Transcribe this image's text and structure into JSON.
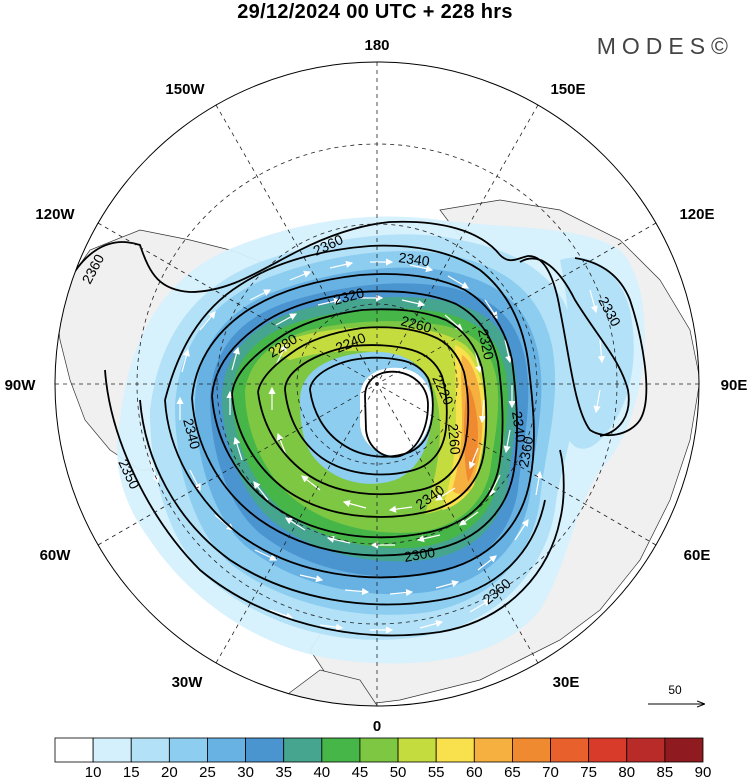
{
  "header": {
    "title": "29/12/2024  00 UTC  + 228 hrs",
    "brand": "MODES©"
  },
  "map": {
    "projection": "north-polar-stereographic",
    "longitude_labels": {
      "top": "180",
      "bottom": "0",
      "left": "90W",
      "right": "90E",
      "upper_left": "150W",
      "upper_right": "150E",
      "mid_upper_left": "120W",
      "mid_upper_right": "120E",
      "mid_lower_left": "60W",
      "mid_lower_right": "60E",
      "lower_left": "30W",
      "lower_right": "30E"
    },
    "contour_labels": [
      "2360",
      "2340",
      "2320",
      "2280",
      "2240",
      "2260",
      "2220",
      "2320",
      "2340",
      "2330",
      "2260",
      "2340",
      "2300",
      "2360",
      "2350",
      "2340",
      "2360",
      "2360"
    ],
    "land_color": "#f2f2f2",
    "grid_style": "dashed"
  },
  "colorbar": {
    "ticks": [
      "10",
      "15",
      "20",
      "25",
      "30",
      "35",
      "40",
      "45",
      "50",
      "55",
      "60",
      "65",
      "70",
      "75",
      "80",
      "85",
      "90"
    ],
    "colors": [
      "#ffffff",
      "#d5f0fd",
      "#b3e1f7",
      "#8ccdf0",
      "#67b1e3",
      "#4a94cf",
      "#45a58f",
      "#46b649",
      "#7dc743",
      "#c5dc3e",
      "#f9e04d",
      "#f6b040",
      "#ef8a31",
      "#e8602c",
      "#d83b2a",
      "#b82b29",
      "#8f1a1f"
    ]
  },
  "reference_vector": {
    "label": "50"
  }
}
